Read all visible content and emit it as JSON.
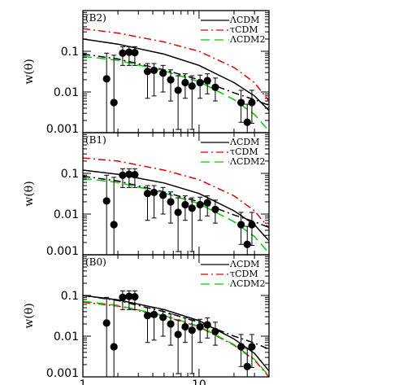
{
  "chart_data": [
    {
      "type": "scatter",
      "title": "(B2)",
      "ylabel": "w(θ)",
      "xlabel": "",
      "xscale": "log",
      "yscale": "log",
      "xlim": [
        1,
        40
      ],
      "ylim": [
        0.001,
        1
      ],
      "yticklabels": [
        "0.001",
        "0.01",
        "0.1"
      ],
      "xticklabels": [],
      "legend_position": "top-right",
      "legend": [
        "ΛCDM",
        "τCDM",
        "ΛCDM2"
      ],
      "series": [
        {
          "name": "ΛCDM",
          "kind": "line",
          "color": "#000000",
          "dash": "solid",
          "x": [
            1,
            2,
            5,
            10,
            20,
            30,
            40
          ],
          "y": [
            0.2,
            0.15,
            0.085,
            0.045,
            0.017,
            0.008,
            0.0035
          ]
        },
        {
          "name": "τCDM",
          "kind": "line",
          "color": "#e00000",
          "dash": "dashdot",
          "x": [
            1,
            2,
            5,
            10,
            20,
            30,
            40
          ],
          "y": [
            0.36,
            0.28,
            0.17,
            0.1,
            0.04,
            0.017,
            0.006
          ]
        },
        {
          "name": "ΛCDM2",
          "kind": "line",
          "color": "#00cc00",
          "dash": "dash",
          "x": [
            1,
            2,
            5,
            10,
            20,
            30,
            40
          ],
          "y": [
            0.075,
            0.06,
            0.033,
            0.018,
            0.0065,
            0.0028,
            0.0011
          ]
        },
        {
          "name": "",
          "kind": "line",
          "color": "#000000",
          "dash": "dashdot",
          "x": [
            1,
            2,
            5,
            10,
            20,
            30,
            40
          ],
          "y": [
            0.085,
            0.065,
            0.035,
            0.02,
            0.0095,
            0.0065,
            0.0047
          ]
        },
        {
          "name": "",
          "kind": "points",
          "x": [
            1.6,
            1.85,
            2.2,
            2.5,
            2.8,
            3.6,
            4.1,
            4.9,
            5.7,
            6.6,
            7.6,
            8.7,
            10.2,
            11.8,
            13.8,
            23,
            26,
            28.5
          ],
          "y": [
            0.021,
            0.0055,
            0.09,
            0.095,
            0.093,
            0.032,
            0.034,
            0.029,
            0.02,
            0.011,
            0.017,
            0.014,
            0.017,
            0.019,
            0.013,
            0.0055,
            0.0018,
            0.0055
          ],
          "err_low": [
            0.0004,
            0.0004,
            0.045,
            0.045,
            0.045,
            0.007,
            0.008,
            0.01,
            0.006,
            0.0012,
            0.007,
            0.0012,
            0.007,
            0.009,
            0.006,
            0.0018,
            0.0007,
            0.0017
          ],
          "err_high": [
            0.09,
            0.08,
            0.13,
            0.13,
            0.13,
            0.05,
            0.05,
            0.045,
            0.035,
            0.025,
            0.028,
            0.025,
            0.026,
            0.028,
            0.022,
            0.011,
            0.005,
            0.011
          ]
        }
      ]
    },
    {
      "type": "scatter",
      "title": "(B1)",
      "ylabel": "w(θ)",
      "xlabel": "",
      "xscale": "log",
      "yscale": "log",
      "xlim": [
        1,
        40
      ],
      "ylim": [
        0.001,
        1
      ],
      "yticklabels": [
        "0.001",
        "0.01",
        "0.1"
      ],
      "xticklabels": [],
      "legend_position": "top-right",
      "legend": [
        "ΛCDM",
        "τCDM",
        "ΛCDM2"
      ],
      "series": [
        {
          "name": "ΛCDM",
          "kind": "line",
          "color": "#000000",
          "dash": "solid",
          "x": [
            1,
            2,
            5,
            10,
            20,
            30,
            40
          ],
          "y": [
            0.12,
            0.095,
            0.058,
            0.032,
            0.012,
            0.0055,
            0.0022
          ]
        },
        {
          "name": "τCDM",
          "kind": "line",
          "color": "#e00000",
          "dash": "dashdot",
          "x": [
            1,
            2,
            5,
            10,
            20,
            30,
            40
          ],
          "y": [
            0.24,
            0.2,
            0.12,
            0.07,
            0.028,
            0.012,
            0.0045
          ]
        },
        {
          "name": "ΛCDM2",
          "kind": "line",
          "color": "#00cc00",
          "dash": "dash",
          "x": [
            1,
            2,
            5,
            10,
            20,
            30,
            40
          ],
          "y": [
            0.075,
            0.06,
            0.033,
            0.018,
            0.0065,
            0.0028,
            0.0011
          ]
        },
        {
          "name": "",
          "kind": "line",
          "color": "#000000",
          "dash": "dashdot",
          "x": [
            1,
            2,
            5,
            10,
            20,
            30,
            40
          ],
          "y": [
            0.085,
            0.065,
            0.035,
            0.02,
            0.0095,
            0.0065,
            0.0047
          ]
        },
        {
          "name": "",
          "kind": "points",
          "x": [
            1.6,
            1.85,
            2.2,
            2.5,
            2.8,
            3.6,
            4.1,
            4.9,
            5.7,
            6.6,
            7.6,
            8.7,
            10.2,
            11.8,
            13.8,
            23,
            26,
            28.5
          ],
          "y": [
            0.021,
            0.0055,
            0.09,
            0.095,
            0.093,
            0.032,
            0.034,
            0.029,
            0.02,
            0.011,
            0.017,
            0.014,
            0.017,
            0.019,
            0.013,
            0.0055,
            0.0018,
            0.0055
          ],
          "err_low": [
            0.0004,
            0.0004,
            0.045,
            0.045,
            0.045,
            0.007,
            0.008,
            0.01,
            0.006,
            0.0012,
            0.007,
            0.0012,
            0.007,
            0.009,
            0.006,
            0.0018,
            0.0007,
            0.0017
          ],
          "err_high": [
            0.09,
            0.08,
            0.13,
            0.13,
            0.13,
            0.05,
            0.05,
            0.045,
            0.035,
            0.025,
            0.028,
            0.025,
            0.026,
            0.028,
            0.022,
            0.011,
            0.005,
            0.011
          ]
        }
      ]
    },
    {
      "type": "scatter",
      "title": "(B0)",
      "ylabel": "w(θ)",
      "xlabel": "",
      "xscale": "log",
      "yscale": "log",
      "xlim": [
        1,
        40
      ],
      "ylim": [
        0.001,
        1
      ],
      "yticklabels": [
        "0.001",
        "0.01",
        "0.1"
      ],
      "xticklabels": [
        "1",
        "10"
      ],
      "legend_position": "top-right",
      "legend": [
        "ΛCDM",
        "τCDM",
        "ΛCDM2"
      ],
      "series": [
        {
          "name": "ΛCDM",
          "kind": "line",
          "color": "#000000",
          "dash": "solid",
          "x": [
            1,
            2,
            5,
            10,
            20,
            30,
            40
          ],
          "y": [
            0.1,
            0.078,
            0.045,
            0.024,
            0.0085,
            0.0038,
            0.0014
          ]
        },
        {
          "name": "τCDM",
          "kind": "line",
          "color": "#e00000",
          "dash": "dashdot",
          "x": [
            1,
            2,
            5,
            10,
            20,
            30,
            40
          ],
          "y": [
            0.068,
            0.055,
            0.031,
            0.017,
            0.006,
            0.0026,
            0.001
          ]
        },
        {
          "name": "ΛCDM2",
          "kind": "line",
          "color": "#00cc00",
          "dash": "dash",
          "x": [
            1,
            2,
            5,
            10,
            20,
            30,
            40
          ],
          "y": [
            0.072,
            0.057,
            0.032,
            0.0175,
            0.0062,
            0.0027,
            0.00105
          ]
        },
        {
          "name": "",
          "kind": "line",
          "color": "#000000",
          "dash": "dashdot",
          "x": [
            1,
            2,
            5,
            10,
            20,
            30,
            40
          ],
          "y": [
            0.1,
            0.075,
            0.04,
            0.022,
            0.01,
            0.0068,
            0.0048
          ]
        },
        {
          "name": "",
          "kind": "points",
          "x": [
            1.6,
            1.85,
            2.2,
            2.5,
            2.8,
            3.6,
            4.1,
            4.9,
            5.7,
            6.6,
            7.6,
            8.7,
            10.2,
            11.8,
            13.8,
            23,
            26,
            28.5
          ],
          "y": [
            0.021,
            0.0055,
            0.09,
            0.095,
            0.093,
            0.032,
            0.034,
            0.029,
            0.02,
            0.011,
            0.017,
            0.014,
            0.017,
            0.019,
            0.013,
            0.0055,
            0.0018,
            0.0055
          ],
          "err_low": [
            0.0004,
            0.0004,
            0.045,
            0.045,
            0.045,
            0.007,
            0.008,
            0.01,
            0.006,
            0.0012,
            0.007,
            0.0012,
            0.007,
            0.009,
            0.006,
            0.0018,
            0.0007,
            0.0017
          ],
          "err_high": [
            0.09,
            0.08,
            0.13,
            0.13,
            0.13,
            0.05,
            0.05,
            0.045,
            0.035,
            0.025,
            0.028,
            0.025,
            0.026,
            0.028,
            0.022,
            0.011,
            0.005,
            0.011
          ]
        }
      ]
    }
  ]
}
